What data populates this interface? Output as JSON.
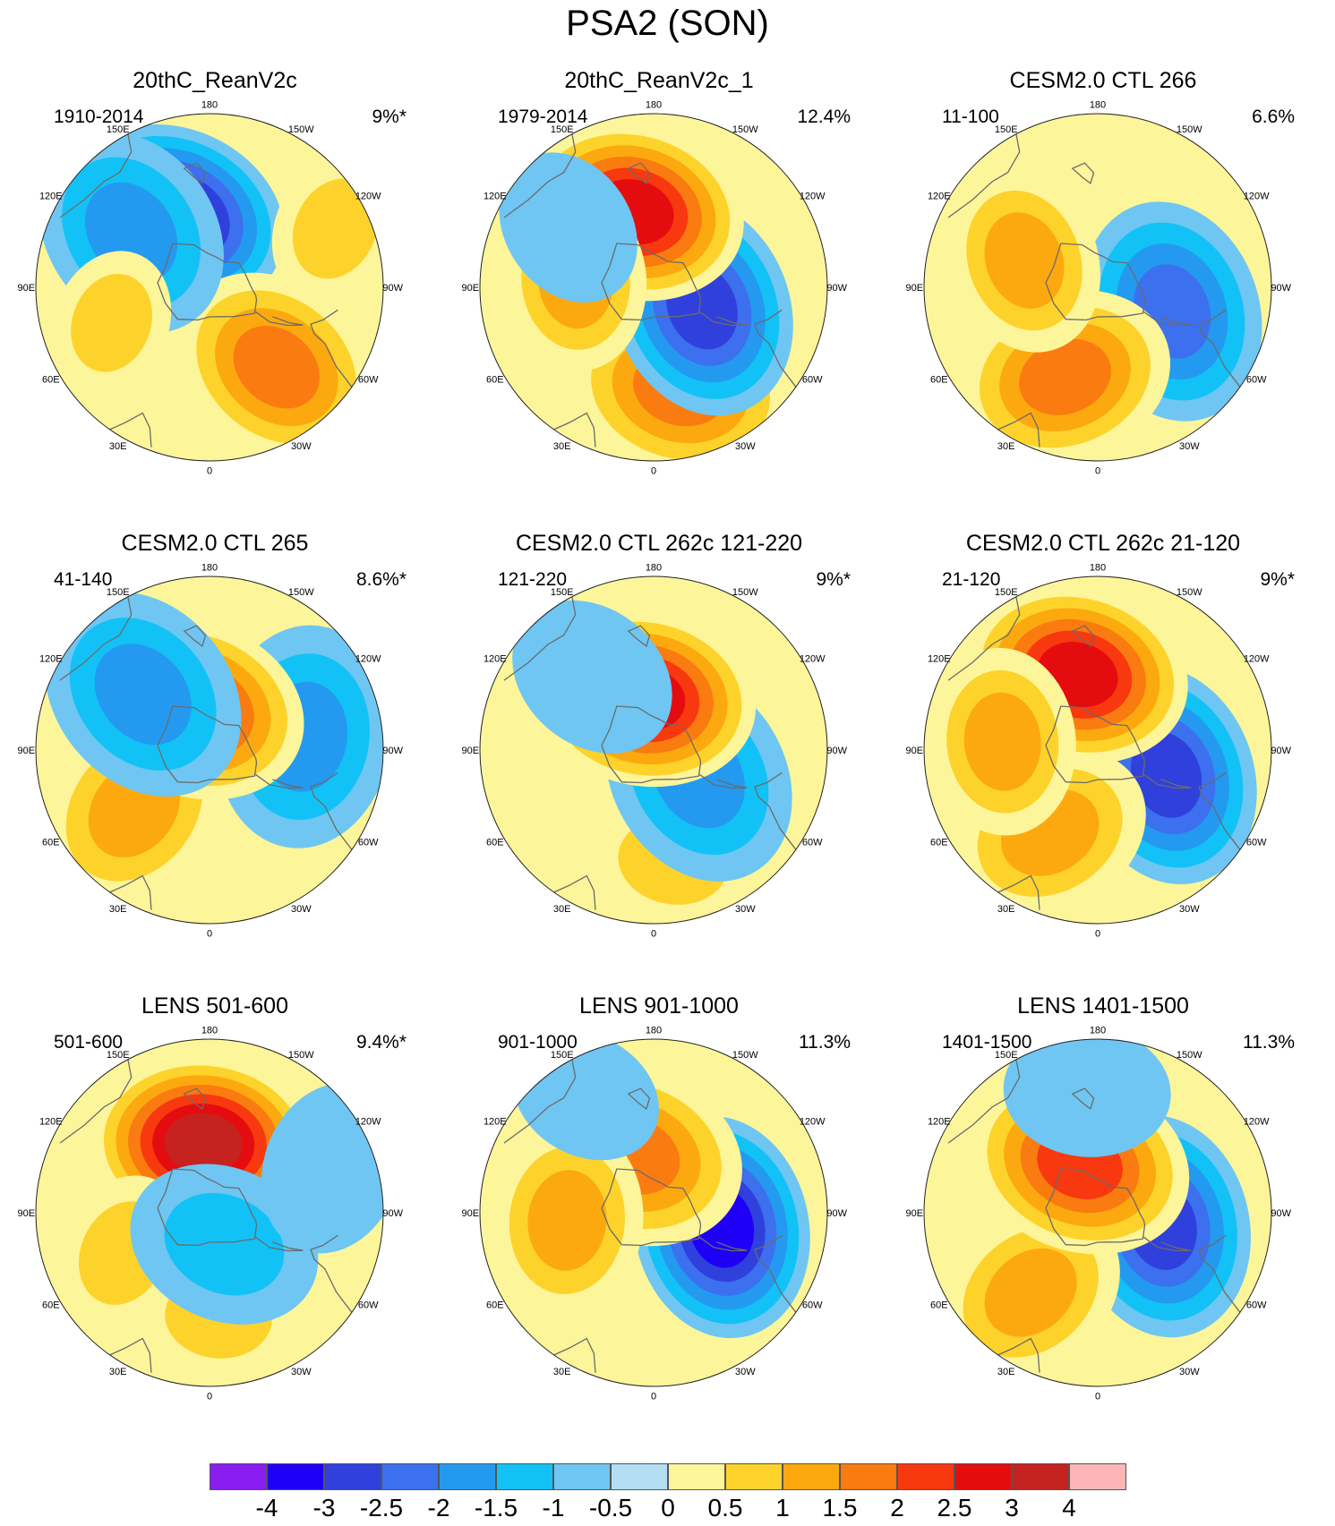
{
  "title": "PSA2 (SON)",
  "panels": [
    {
      "title": "20thC_ReanV2c",
      "period": "1910-2014",
      "variance": "9%*",
      "pattern": [
        {
          "lon": 155,
          "r": 0.45,
          "v": -3.5
        },
        {
          "lon": -40,
          "r": 0.6,
          "v": 1.5
        },
        {
          "lon": 125,
          "r": 0.55,
          "v": -1.5
        },
        {
          "lon": -115,
          "r": 0.8,
          "v": 0.6
        },
        {
          "lon": 70,
          "r": 0.6,
          "v": 0.5
        }
      ]
    },
    {
      "title": "20thC_ReanV2c_1",
      "period": "1979-2014",
      "variance": "12.4%",
      "pattern": [
        {
          "lon": -15,
          "r": 0.6,
          "v": 1.8
        },
        {
          "lon": -68,
          "r": 0.3,
          "v": -2.6
        },
        {
          "lon": 165,
          "r": 0.45,
          "v": 2.5
        },
        {
          "lon": 95,
          "r": 0.45,
          "v": 1.0
        },
        {
          "lon": 125,
          "r": 0.6,
          "v": -0.7
        }
      ]
    },
    {
      "title": "CESM2.0 CTL 266",
      "period": "11-100",
      "variance": "6.6%",
      "pattern": [
        {
          "lon": -72,
          "r": 0.45,
          "v": -2.2
        },
        {
          "lon": 20,
          "r": 0.55,
          "v": 1.5
        },
        {
          "lon": 110,
          "r": 0.45,
          "v": 1.1
        },
        {
          "lon": 160,
          "r": 0.7,
          "v": -0.4
        }
      ]
    },
    {
      "title": "CESM2.0 CTL 265",
      "period": "41-140",
      "variance": "8.6%*",
      "pattern": [
        {
          "lon": -98,
          "r": 0.55,
          "v": -1.8
        },
        {
          "lon": 52,
          "r": 0.55,
          "v": 1.4
        },
        {
          "lon": 160,
          "r": 0.25,
          "v": 2.4
        },
        {
          "lon": 130,
          "r": 0.5,
          "v": -1.9
        }
      ]
    },
    {
      "title": "CESM2.0 CTL 262c 121-220",
      "period": "121-220",
      "variance": "9%*",
      "pattern": [
        {
          "lon": -10,
          "r": 0.65,
          "v": 0.8
        },
        {
          "lon": -60,
          "r": 0.3,
          "v": -1.6
        },
        {
          "lon": 170,
          "r": 0.3,
          "v": 2.8
        },
        {
          "lon": 140,
          "r": 0.55,
          "v": -0.9
        }
      ]
    },
    {
      "title": "CESM2.0 CTL 262c 21-120",
      "period": "21-120",
      "variance": "9%*",
      "pattern": [
        {
          "lon": -70,
          "r": 0.42,
          "v": -2.5
        },
        {
          "lon": 30,
          "r": 0.55,
          "v": 1.3
        },
        {
          "lon": 165,
          "r": 0.45,
          "v": 2.6
        },
        {
          "lon": 95,
          "r": 0.55,
          "v": 1.1
        }
      ]
    },
    {
      "title": "LENS 501-600",
      "period": "501-600",
      "variance": "9.4%*",
      "pattern": [
        {
          "lon": 175,
          "r": 0.4,
          "v": 3.2
        },
        {
          "lon": -5,
          "r": 0.6,
          "v": 0.7
        },
        {
          "lon": 65,
          "r": 0.55,
          "v": 0.7
        },
        {
          "lon": -25,
          "r": 0.2,
          "v": -1.2
        },
        {
          "lon": -110,
          "r": 0.75,
          "v": -0.9
        }
      ]
    },
    {
      "title": "LENS 901-1000",
      "period": "901-1000",
      "variance": "11.3%",
      "pattern": [
        {
          "lon": -78,
          "r": 0.4,
          "v": -3.1
        },
        {
          "lon": 160,
          "r": 0.35,
          "v": 1.8
        },
        {
          "lon": 85,
          "r": 0.5,
          "v": 1.2
        },
        {
          "lon": 150,
          "r": 0.78,
          "v": -0.6
        }
      ]
    },
    {
      "title": "LENS 1401-1500",
      "period": "1401-1500",
      "variance": "11.3%",
      "pattern": [
        {
          "lon": -78,
          "r": 0.38,
          "v": -2.8
        },
        {
          "lon": 40,
          "r": 0.6,
          "v": 1.2
        },
        {
          "lon": 160,
          "r": 0.3,
          "v": 2.4
        },
        {
          "lon": 175,
          "r": 0.7,
          "v": -0.8
        }
      ]
    }
  ],
  "longitude_labels": [
    "0",
    "30E",
    "60E",
    "90E",
    "120E",
    "150E",
    "180",
    "150W",
    "120W",
    "90W",
    "60W",
    "30W"
  ],
  "colorbar": {
    "levels": [
      "-4",
      "-3",
      "-2.5",
      "-2",
      "-1.5",
      "-1",
      "-0.5",
      "0",
      "0.5",
      "1",
      "1.5",
      "2",
      "2.5",
      "3",
      "4"
    ],
    "colors": [
      "#8a1ef0",
      "#1e00f7",
      "#3040dc",
      "#3c70ee",
      "#239af0",
      "#12c2f6",
      "#6fc6f2",
      "#b3def4",
      "#fdf59a",
      "#fdd32b",
      "#fca90f",
      "#fa7b10",
      "#f8380e",
      "#e50c0f",
      "#c62220",
      "#fbb6b5"
    ]
  }
}
